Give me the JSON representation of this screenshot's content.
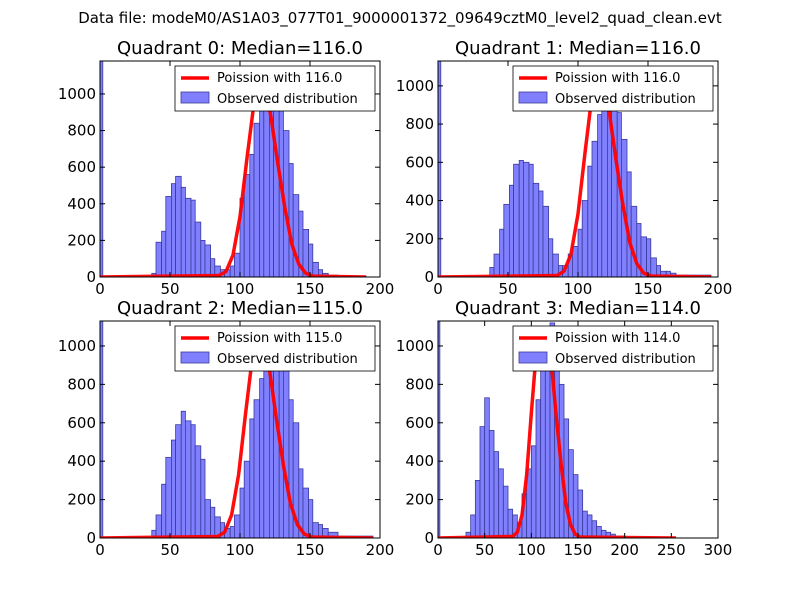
{
  "suptitle": "Data file: modeM0/AS1A03_077T01_9000001372_09649cztM0_level2_quad_clean.evt",
  "colors": {
    "hist_fill": "#8080ff",
    "hist_edge": "#3a3a9a",
    "poisson_line": "#ff0000"
  },
  "chart_data": [
    {
      "type": "bar",
      "title": "Quadrant 0: Median=116.0",
      "median": 116.0,
      "xlim": [
        0,
        200
      ],
      "ylim": [
        0,
        1180
      ],
      "xticks": [
        "0",
        "50",
        "100",
        "150",
        "200"
      ],
      "yticks": [
        "0",
        "200",
        "400",
        "600",
        "800",
        "1000"
      ],
      "legend": {
        "placement": "top-right",
        "line_label": "Poission with 116.0",
        "hist_label": "Observed distribution"
      },
      "hist": {
        "x_start": [
          0,
          37,
          40,
          44,
          47,
          51,
          54,
          58,
          61,
          65,
          68,
          72,
          75,
          79,
          82,
          86,
          89,
          93,
          96,
          100,
          103,
          107,
          110,
          114,
          117,
          121,
          124,
          128,
          131,
          135,
          138,
          142,
          145,
          149,
          152,
          156,
          159,
          163,
          170
        ],
        "x_end": [
          2,
          40,
          44,
          47,
          51,
          54,
          58,
          61,
          65,
          68,
          72,
          75,
          79,
          82,
          86,
          89,
          93,
          96,
          100,
          103,
          107,
          110,
          114,
          117,
          121,
          124,
          128,
          131,
          135,
          138,
          142,
          145,
          149,
          152,
          156,
          159,
          163,
          170,
          190
        ],
        "counts": [
          1180,
          20,
          190,
          250,
          440,
          510,
          550,
          490,
          430,
          420,
          300,
          200,
          175,
          100,
          60,
          40,
          40,
          60,
          130,
          430,
          560,
          670,
          840,
          1020,
          1080,
          990,
          950,
          910,
          800,
          620,
          450,
          360,
          260,
          180,
          80,
          40,
          20,
          10,
          5
        ]
      },
      "poisson": {
        "x": [
          0,
          85,
          90,
          95,
          100,
          105,
          110,
          114,
          116,
          118,
          122,
          127,
          132,
          137,
          142,
          147,
          152,
          190
        ],
        "y": [
          0,
          8,
          30,
          120,
          330,
          650,
          950,
          1070,
          1075,
          1040,
          880,
          620,
          380,
          180,
          70,
          20,
          5,
          0
        ]
      }
    },
    {
      "type": "bar",
      "title": "Quadrant 1: Median=116.0",
      "median": 116.0,
      "xlim": [
        0,
        200
      ],
      "ylim": [
        0,
        1130
      ],
      "xticks": [
        "0",
        "50",
        "100",
        "150",
        "200"
      ],
      "yticks": [
        "0",
        "200",
        "400",
        "600",
        "800",
        "1000"
      ],
      "legend": {
        "placement": "top-right",
        "line_label": "Poission with 116.0",
        "hist_label": "Observed distribution"
      },
      "hist": {
        "x_start": [
          0,
          37,
          40,
          44,
          47,
          51,
          54,
          58,
          61,
          65,
          68,
          72,
          75,
          79,
          82,
          86,
          89,
          93,
          96,
          100,
          103,
          107,
          110,
          114,
          117,
          121,
          124,
          128,
          131,
          135,
          138,
          142,
          145,
          149,
          152,
          156,
          159,
          163,
          166,
          170
        ],
        "x_end": [
          2,
          40,
          44,
          47,
          51,
          54,
          58,
          61,
          65,
          68,
          72,
          75,
          79,
          82,
          86,
          89,
          93,
          96,
          100,
          103,
          107,
          110,
          114,
          117,
          121,
          124,
          128,
          131,
          135,
          138,
          142,
          145,
          149,
          152,
          156,
          159,
          163,
          166,
          170,
          195
        ],
        "counts": [
          1130,
          50,
          120,
          250,
          380,
          480,
          590,
          610,
          600,
          590,
          490,
          450,
          370,
          200,
          120,
          60,
          60,
          120,
          160,
          250,
          400,
          580,
          710,
          850,
          940,
          1050,
          1000,
          860,
          720,
          550,
          370,
          280,
          210,
          200,
          100,
          60,
          30,
          30,
          20,
          10
        ]
      },
      "poisson": {
        "x": [
          0,
          85,
          90,
          95,
          100,
          105,
          110,
          114,
          116,
          118,
          122,
          127,
          132,
          137,
          142,
          147,
          152,
          195
        ],
        "y": [
          0,
          8,
          30,
          120,
          330,
          650,
          950,
          1070,
          1075,
          1040,
          880,
          620,
          380,
          180,
          70,
          20,
          5,
          0
        ]
      }
    },
    {
      "type": "bar",
      "title": "Quadrant 2: Median=115.0",
      "median": 115.0,
      "xlim": [
        0,
        200
      ],
      "ylim": [
        0,
        1130
      ],
      "xticks": [
        "0",
        "50",
        "100",
        "150",
        "200"
      ],
      "yticks": [
        "0",
        "200",
        "400",
        "600",
        "800",
        "1000"
      ],
      "legend": {
        "placement": "top-right",
        "line_label": "Poission with 115.0",
        "hist_label": "Observed distribution"
      },
      "hist": {
        "x_start": [
          0,
          37,
          40,
          44,
          47,
          51,
          54,
          58,
          61,
          65,
          68,
          72,
          75,
          79,
          82,
          86,
          89,
          93,
          96,
          100,
          103,
          107,
          110,
          114,
          117,
          121,
          124,
          128,
          131,
          135,
          138,
          142,
          145,
          149,
          152,
          156,
          159,
          163,
          170
        ],
        "x_end": [
          2,
          40,
          44,
          47,
          51,
          54,
          58,
          61,
          65,
          68,
          72,
          75,
          79,
          82,
          86,
          89,
          93,
          96,
          100,
          103,
          107,
          110,
          114,
          117,
          121,
          124,
          128,
          131,
          135,
          138,
          142,
          145,
          149,
          152,
          156,
          159,
          163,
          170,
          195
        ],
        "counts": [
          1130,
          40,
          120,
          280,
          420,
          510,
          590,
          660,
          610,
          590,
          480,
          410,
          200,
          160,
          110,
          80,
          50,
          60,
          120,
          260,
          400,
          620,
          720,
          830,
          960,
          1100,
          1100,
          1000,
          870,
          720,
          600,
          360,
          260,
          200,
          80,
          70,
          50,
          30,
          10
        ]
      },
      "poisson": {
        "x": [
          0,
          84,
          89,
          94,
          99,
          104,
          109,
          113,
          115,
          117,
          121,
          126,
          131,
          136,
          141,
          146,
          151,
          195
        ],
        "y": [
          0,
          8,
          30,
          120,
          330,
          650,
          950,
          1070,
          1080,
          1040,
          880,
          620,
          380,
          180,
          70,
          20,
          5,
          0
        ]
      }
    },
    {
      "type": "bar",
      "title": "Quadrant 3: Median=114.0",
      "median": 114.0,
      "xlim": [
        0,
        300
      ],
      "ylim": [
        0,
        1130
      ],
      "xticks": [
        "0",
        "50",
        "100",
        "150",
        "200",
        "250",
        "300"
      ],
      "yticks": [
        "0",
        "200",
        "400",
        "600",
        "800",
        "1000"
      ],
      "legend": {
        "placement": "top-right",
        "line_label": "Poission with 114.0",
        "hist_label": "Observed distribution"
      },
      "hist": {
        "x_start": [
          0,
          30,
          35,
          40,
          45,
          50,
          55,
          60,
          65,
          70,
          75,
          80,
          85,
          90,
          95,
          100,
          105,
          110,
          115,
          120,
          125,
          130,
          135,
          140,
          145,
          150,
          155,
          160,
          165,
          170,
          175,
          180,
          185,
          190
        ],
        "x_end": [
          2,
          35,
          40,
          45,
          50,
          55,
          60,
          65,
          70,
          75,
          80,
          85,
          90,
          95,
          100,
          105,
          110,
          115,
          120,
          125,
          130,
          135,
          140,
          145,
          150,
          155,
          160,
          165,
          170,
          175,
          180,
          185,
          190,
          200
        ],
        "counts": [
          1130,
          30,
          120,
          300,
          580,
          730,
          560,
          450,
          360,
          270,
          150,
          120,
          80,
          230,
          360,
          480,
          720,
          980,
          1100,
          1120,
          1000,
          800,
          620,
          460,
          330,
          250,
          140,
          120,
          90,
          60,
          40,
          30,
          20,
          10
        ]
      },
      "poisson": {
        "x": [
          0,
          80,
          85,
          90,
          95,
          100,
          105,
          110,
          114,
          118,
          122,
          127,
          132,
          137,
          142,
          147,
          152,
          255
        ],
        "y": [
          0,
          8,
          30,
          120,
          330,
          650,
          950,
          1050,
          1080,
          1040,
          880,
          620,
          380,
          180,
          70,
          20,
          5,
          0
        ]
      }
    }
  ]
}
